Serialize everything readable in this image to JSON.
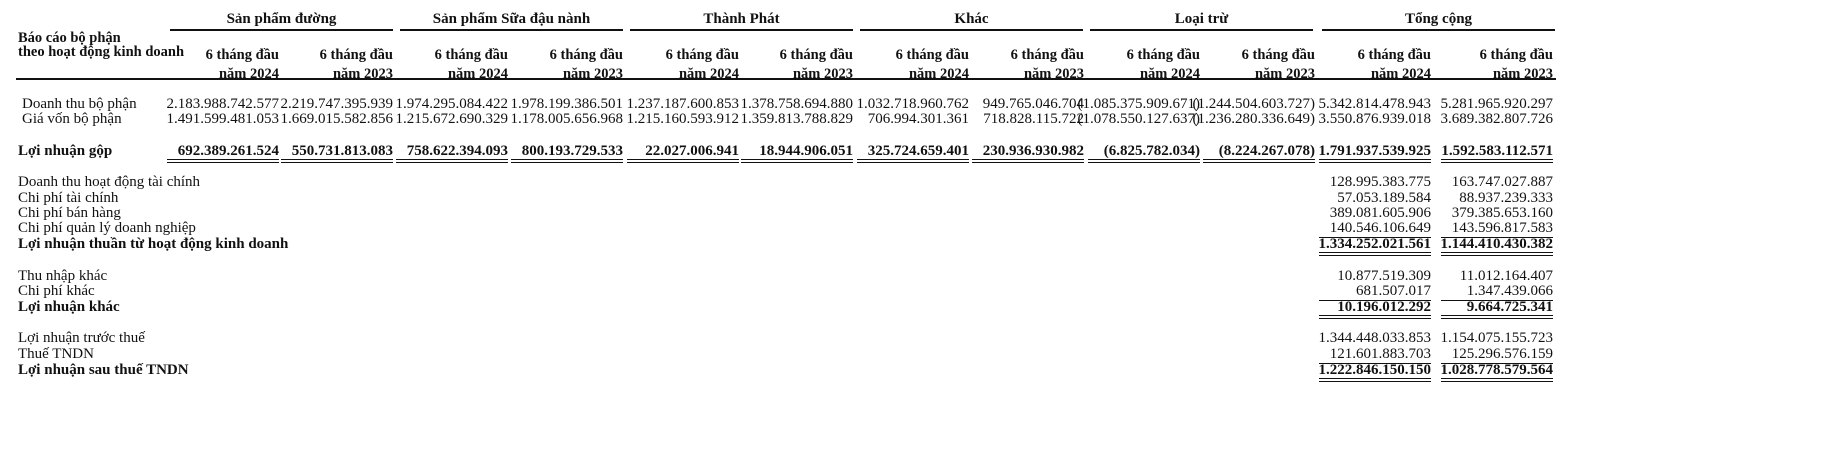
{
  "header": {
    "title_line1": "Báo cáo bộ phận",
    "title_line2": "theo hoạt động kinh doanh",
    "segments": [
      "Sản phẩm đường",
      "Sản phẩm Sữa đậu nành",
      "Thành Phát",
      "Khác",
      "Loại trừ",
      "Tổng cộng"
    ],
    "period_2024_line1": "6 tháng đầu",
    "period_2024_line2": "năm 2024",
    "period_2023_line1": "6 tháng đầu",
    "period_2023_line2": "năm 2023"
  },
  "segment_rows": [
    {
      "label": "Doanh thu bộ phận",
      "values": [
        "2.183.988.742.577",
        "2.219.747.395.939",
        "1.974.295.084.422",
        "1.978.199.386.501",
        "1.237.187.600.853",
        "1.378.758.694.880",
        "1.032.718.960.762",
        "949.765.046.704",
        "(1.085.375.909.671)",
        "(1.244.504.603.727)",
        "5.342.814.478.943",
        "5.281.965.920.297"
      ]
    },
    {
      "label": "Giá vốn bộ phận",
      "values": [
        "1.491.599.481.053",
        "1.669.015.582.856",
        "1.215.672.690.329",
        "1.178.005.656.968",
        "1.215.160.593.912",
        "1.359.813.788.829",
        "706.994.301.361",
        "718.828.115.722",
        "(1.078.550.127.637)",
        "(1.236.280.336.649)",
        "3.550.876.939.018",
        "3.689.382.807.726"
      ]
    },
    {
      "label": "Lợi nhuận gộp",
      "values": [
        "692.389.261.524",
        "550.731.813.083",
        "758.622.394.093",
        "800.193.729.533",
        "22.027.006.941",
        "18.944.906.051",
        "325.724.659.401",
        "230.936.930.982",
        "(6.825.782.034)",
        "(8.224.267.078)",
        "1.791.937.539.925",
        "1.592.583.112.571"
      ]
    }
  ],
  "total_rows": [
    {
      "label": "Doanh thu hoạt động tài chính",
      "v2024": "128.995.383.775",
      "v2023": "163.747.027.887"
    },
    {
      "label": "Chi phí tài chính",
      "v2024": "57.053.189.584",
      "v2023": "88.937.239.333"
    },
    {
      "label": "Chi phí bán hàng",
      "v2024": "389.081.605.906",
      "v2023": "379.385.653.160"
    },
    {
      "label": "Chi phí quản lý doanh nghiệp",
      "v2024": "140.546.106.649",
      "v2023": "143.596.817.583"
    },
    {
      "label": "Lợi nhuận thuần từ hoạt động kinh doanh",
      "v2024": "1.334.252.021.561",
      "v2023": "1.144.410.430.382"
    },
    {
      "label": "Thu nhập khác",
      "v2024": "10.877.519.309",
      "v2023": "11.012.164.407"
    },
    {
      "label": "Chi phí khác",
      "v2024": "681.507.017",
      "v2023": "1.347.439.066"
    },
    {
      "label": "Lợi nhuận khác",
      "v2024": "10.196.012.292",
      "v2023": "9.664.725.341"
    },
    {
      "label": "Lợi nhuận trước thuế",
      "v2024": "1.344.448.033.853",
      "v2023": "1.154.075.155.723"
    },
    {
      "label": "Thuế TNDN",
      "v2024": "121.601.883.703",
      "v2023": "125.296.576.159"
    },
    {
      "label": "Lợi nhuận sau thuế TNDN",
      "v2024": "1.222.846.150.150",
      "v2023": "1.028.778.579.564"
    }
  ]
}
